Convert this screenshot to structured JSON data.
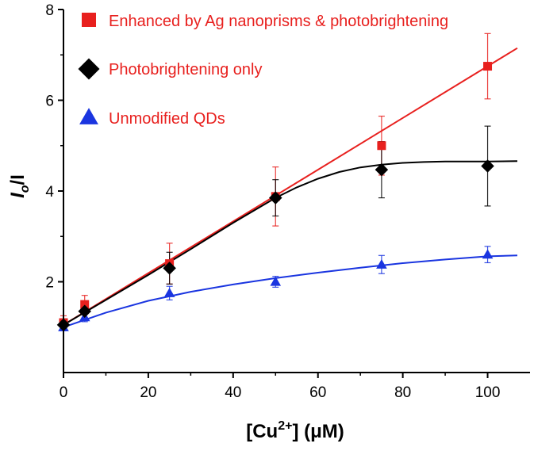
{
  "colors": {
    "enhanced": "#e8201e",
    "photobrightening": "#000000",
    "unmodified": "#1a35e0",
    "legend_text": "#e8201e",
    "axis": "#000000"
  },
  "chart_data": {
    "type": "scatter",
    "title": "",
    "xlabel": "[Cu2+] (μM)",
    "xlabel_parts": {
      "prefix": "[Cu",
      "superscript": "2+",
      "suffix": "] (μM)"
    },
    "ylabel": "I0/I",
    "ylabel_parts": {
      "main": "I",
      "subscript": "o",
      "suffix": "/I"
    },
    "xlim": [
      0,
      110
    ],
    "ylim": [
      0,
      8
    ],
    "x_ticks": [
      0,
      20,
      40,
      60,
      80,
      100
    ],
    "y_ticks": [
      2,
      4,
      6,
      8
    ],
    "legend_position": "top-left",
    "grid": false,
    "series": [
      {
        "name": "Enhanced by Ag nanoprisms & photobrightening",
        "color_key": "enhanced",
        "marker": "square",
        "x": [
          0,
          5,
          25,
          50,
          75,
          100
        ],
        "y": [
          1.1,
          1.5,
          2.4,
          3.88,
          5.0,
          6.75
        ],
        "err": [
          0.15,
          0.2,
          0.45,
          0.65,
          0.65,
          0.72
        ],
        "fit": {
          "type": "linear",
          "x": [
            0,
            107
          ],
          "y": [
            1.05,
            7.15
          ]
        }
      },
      {
        "name": "Photobrightening only",
        "color_key": "photobrightening",
        "marker": "diamond",
        "x": [
          0,
          5,
          25,
          50,
          75,
          100
        ],
        "y": [
          1.05,
          1.35,
          2.3,
          3.85,
          4.47,
          4.55
        ],
        "err": [
          0.1,
          0.15,
          0.35,
          0.4,
          0.62,
          0.88
        ],
        "fit": {
          "type": "curve",
          "x": [
            0,
            10,
            20,
            30,
            40,
            50,
            55,
            60,
            65,
            70,
            75,
            80,
            85,
            90,
            95,
            100,
            107
          ],
          "y": [
            1.05,
            1.6,
            2.15,
            2.72,
            3.3,
            3.85,
            4.08,
            4.27,
            4.42,
            4.52,
            4.58,
            4.62,
            4.64,
            4.65,
            4.65,
            4.65,
            4.66
          ]
        }
      },
      {
        "name": "Unmodified QDs",
        "color_key": "unmodified",
        "marker": "triangle",
        "x": [
          0,
          5,
          25,
          50,
          75,
          100
        ],
        "y": [
          1.0,
          1.22,
          1.75,
          2.0,
          2.38,
          2.6
        ],
        "err": [
          0.08,
          0.1,
          0.15,
          0.12,
          0.2,
          0.18
        ],
        "fit": {
          "type": "curve",
          "x": [
            0,
            10,
            20,
            30,
            40,
            50,
            60,
            70,
            80,
            90,
            100,
            107
          ],
          "y": [
            1.0,
            1.32,
            1.58,
            1.78,
            1.94,
            2.08,
            2.2,
            2.31,
            2.41,
            2.49,
            2.56,
            2.58
          ]
        }
      }
    ]
  }
}
